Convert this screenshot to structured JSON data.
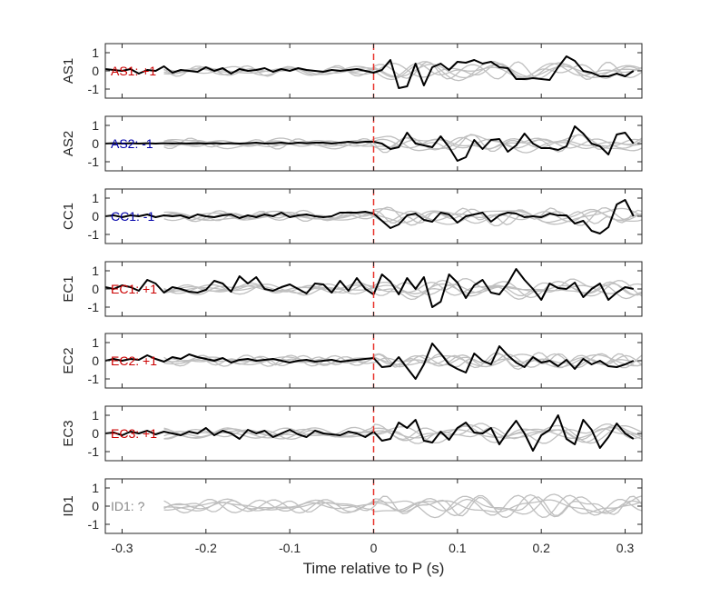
{
  "colors": {
    "positive": "#cc0000",
    "negative": "#0000aa",
    "unknown": "#888888",
    "trace": "#000000",
    "background_trace": "#bfbfbf",
    "p_marker": "#e8322b"
  },
  "chart_data": {
    "type": "line",
    "xlabel": "Time relative to P (s)",
    "xlim": [
      -0.32,
      0.32
    ],
    "xticks": [
      -0.3,
      -0.2,
      -0.1,
      0,
      0.1,
      0.2,
      0.3
    ],
    "xtick_labels": [
      "-0.3",
      "-0.2",
      "-0.1",
      "0",
      "0.1",
      "0.2",
      "0.3"
    ],
    "ylim": [
      -1.5,
      1.5
    ],
    "yticks": [
      -1,
      0,
      1
    ],
    "ytick_labels": [
      "-1",
      "0",
      "1"
    ],
    "p_marker_x": 0,
    "x": [
      -0.32,
      -0.31,
      -0.3,
      -0.29,
      -0.28,
      -0.27,
      -0.26,
      -0.25,
      -0.24,
      -0.23,
      -0.22,
      -0.21,
      -0.2,
      -0.19,
      -0.18,
      -0.17,
      -0.16,
      -0.15,
      -0.14,
      -0.13,
      -0.12,
      -0.11,
      -0.1,
      -0.09,
      -0.08,
      -0.07,
      -0.06,
      -0.05,
      -0.04,
      -0.03,
      -0.02,
      -0.01,
      0,
      0.01,
      0.02,
      0.03,
      0.04,
      0.05,
      0.06,
      0.07,
      0.08,
      0.09,
      0.1,
      0.11,
      0.12,
      0.13,
      0.14,
      0.15,
      0.16,
      0.17,
      0.18,
      0.19,
      0.2,
      0.21,
      0.22,
      0.23,
      0.24,
      0.25,
      0.26,
      0.27,
      0.28,
      0.29,
      0.3,
      0.31
    ],
    "panels": [
      {
        "ylabel": "AS1",
        "annotation": "AS1: +1",
        "polarity": "positive",
        "trace": [
          0.1,
          0.05,
          0.0,
          0.1,
          -0.15,
          0.05,
          0.0,
          0.25,
          -0.1,
          0.05,
          0.0,
          -0.05,
          0.2,
          0.0,
          0.15,
          -0.15,
          0.1,
          0.0,
          0.05,
          0.15,
          -0.05,
          0.1,
          0.0,
          0.15,
          0.05,
          0.0,
          -0.05,
          0.05,
          0.0,
          0.05,
          0.1,
          0.0,
          -0.1,
          0.05,
          0.6,
          -0.95,
          -0.85,
          0.4,
          -0.8,
          0.2,
          0.4,
          0.05,
          0.5,
          0.45,
          0.6,
          0.4,
          0.5,
          0.2,
          0.15,
          -0.45,
          -0.45,
          -0.4,
          -0.45,
          -0.5,
          0.2,
          0.8,
          0.55,
          0.0,
          -0.1,
          -0.3,
          -0.3,
          -0.15,
          -0.3,
          0.0
        ]
      },
      {
        "ylabel": "AS2",
        "annotation": "AS2: -1",
        "polarity": "negative",
        "trace": [
          0.0,
          0.02,
          0.0,
          0.02,
          0.0,
          0.02,
          0.0,
          0.02,
          0.0,
          0.02,
          0.0,
          0.02,
          0.0,
          0.02,
          0.0,
          0.02,
          0.0,
          0.02,
          0.05,
          0.0,
          0.02,
          0.05,
          0.0,
          0.05,
          0.02,
          0.05,
          0.05,
          0.0,
          0.05,
          0.1,
          0.05,
          0.1,
          0.1,
          0.0,
          -0.3,
          -0.2,
          0.6,
          0.0,
          -0.1,
          -0.2,
          0.4,
          -0.2,
          -0.95,
          -0.75,
          0.2,
          -0.3,
          0.2,
          0.25,
          -0.45,
          -0.1,
          0.55,
          0.0,
          -0.25,
          -0.25,
          -0.35,
          -0.15,
          0.95,
          0.55,
          0.0,
          -0.15,
          -0.6,
          0.5,
          0.6,
          0.0
        ]
      },
      {
        "ylabel": "CC1",
        "annotation": "CC1: -1",
        "polarity": "negative",
        "trace": [
          0.0,
          0.05,
          -0.05,
          0.05,
          0.0,
          0.1,
          -0.05,
          0.05,
          0.0,
          0.05,
          -0.1,
          0.1,
          0.0,
          -0.05,
          0.05,
          0.1,
          -0.1,
          0.05,
          -0.05,
          0.1,
          0.0,
          0.2,
          -0.05,
          0.05,
          0.1,
          0.0,
          -0.05,
          0.0,
          0.2,
          0.2,
          0.2,
          0.25,
          0.15,
          -0.25,
          -0.65,
          -0.45,
          0.05,
          0.15,
          -0.2,
          -0.3,
          0.2,
          0.1,
          -0.35,
          0.0,
          0.1,
          0.2,
          -0.3,
          0.05,
          0.2,
          0.15,
          -0.05,
          0.0,
          -0.05,
          0.15,
          0.05,
          0.05,
          -0.4,
          -0.25,
          -0.8,
          -0.95,
          -0.6,
          0.65,
          0.9,
          0.0
        ]
      },
      {
        "ylabel": "EC1",
        "annotation": "EC1: +1",
        "polarity": "positive",
        "trace": [
          0.1,
          0.0,
          0.2,
          0.1,
          -0.1,
          0.5,
          0.3,
          -0.2,
          0.1,
          0.0,
          -0.15,
          -0.2,
          -0.05,
          0.45,
          0.3,
          -0.15,
          0.7,
          0.3,
          0.65,
          0.0,
          -0.1,
          0.1,
          0.25,
          0.0,
          -0.25,
          0.3,
          0.25,
          -0.2,
          0.45,
          -0.1,
          0.6,
          0.0,
          -0.3,
          0.8,
          0.4,
          -0.3,
          0.6,
          0.0,
          0.65,
          -1.0,
          -0.7,
          0.8,
          0.35,
          -0.5,
          0.2,
          0.5,
          -0.2,
          -0.3,
          0.3,
          1.1,
          0.5,
          0.0,
          -0.6,
          0.3,
          0.05,
          0.0,
          0.35,
          -0.45,
          0.0,
          0.3,
          -0.6,
          -0.2,
          0.1,
          0.0
        ]
      },
      {
        "ylabel": "EC2",
        "annotation": "EC2: +1",
        "polarity": "positive",
        "trace": [
          0.0,
          0.1,
          0.0,
          0.1,
          0.05,
          0.3,
          0.1,
          -0.05,
          0.2,
          0.1,
          0.35,
          0.2,
          0.1,
          0.0,
          0.15,
          -0.1,
          0.05,
          0.1,
          0.0,
          0.05,
          0.1,
          0.0,
          -0.1,
          0.0,
          0.05,
          -0.05,
          0.0,
          0.05,
          -0.05,
          0.0,
          0.05,
          0.1,
          0.15,
          -0.35,
          -0.3,
          0.2,
          -0.4,
          -1.0,
          -0.2,
          0.95,
          0.4,
          -0.2,
          -0.45,
          -0.65,
          0.4,
          0.0,
          -0.2,
          0.8,
          0.3,
          -0.1,
          -0.35,
          0.2,
          -0.1,
          0.0,
          -0.3,
          0.05,
          -0.45,
          0.1,
          -0.2,
          0.0,
          -0.3,
          -0.35,
          -0.2,
          0.0
        ]
      },
      {
        "ylabel": "EC3",
        "annotation": "EC3: +1",
        "polarity": "positive",
        "trace": [
          0.0,
          0.05,
          -0.1,
          0.1,
          0.0,
          0.15,
          -0.05,
          0.1,
          0.0,
          -0.1,
          0.1,
          0.0,
          0.3,
          -0.1,
          0.15,
          0.0,
          -0.3,
          0.2,
          0.0,
          0.15,
          -0.2,
          0.0,
          0.2,
          -0.05,
          -0.2,
          0.15,
          0.0,
          -0.05,
          -0.1,
          0.1,
          0.0,
          -0.2,
          0.1,
          -0.4,
          -0.3,
          0.6,
          0.3,
          0.75,
          -0.4,
          -0.5,
          0.1,
          -0.35,
          0.3,
          0.6,
          0.05,
          0.0,
          0.3,
          -0.6,
          0.1,
          0.7,
          0.0,
          -0.95,
          -0.1,
          0.2,
          1.0,
          -0.3,
          -0.6,
          0.75,
          0.2,
          -0.8,
          -0.2,
          0.55,
          0.0,
          -0.3
        ]
      },
      {
        "ylabel": "ID1",
        "annotation": "ID1: ?",
        "polarity": "unknown",
        "trace": null
      }
    ]
  }
}
